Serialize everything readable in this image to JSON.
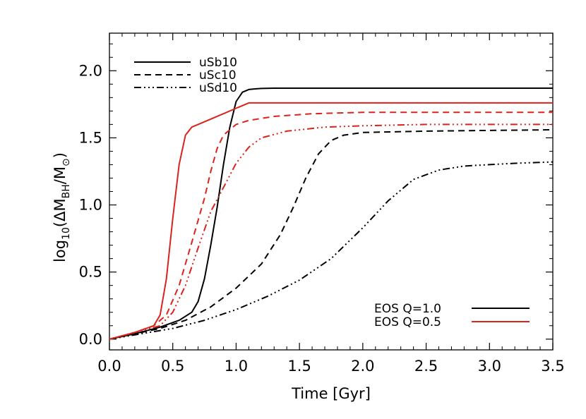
{
  "chart_data": {
    "type": "line",
    "xlabel": "Time [Gyr]",
    "ylabel": "log10(ΔM_BH/M_⊙)",
    "ylabel_parts": {
      "pre": "log",
      "sub1": "10",
      "open": "(ΔM",
      "sub2": "BH",
      "mid": "/M",
      "sub3": "⊙",
      "close": ")"
    },
    "xlim": [
      0.0,
      3.5
    ],
    "ylim": [
      -0.08,
      2.28
    ],
    "xticks": [
      0.0,
      0.5,
      1.0,
      1.5,
      2.0,
      2.5,
      3.0,
      3.5
    ],
    "xtick_labels": [
      "0.0",
      "0.5",
      "1.0",
      "1.5",
      "2.0",
      "2.5",
      "3.0",
      "3.5"
    ],
    "yticks": [
      0.0,
      0.5,
      1.0,
      1.5,
      2.0
    ],
    "ytick_labels": [
      "0.0",
      "0.5",
      "1.0",
      "1.5",
      "2.0"
    ],
    "legend_models": [
      {
        "label": "uSb10",
        "dash": "solid"
      },
      {
        "label": "uSc10",
        "dash": "dashed"
      },
      {
        "label": "uSd10",
        "dash": "dashdotdot"
      }
    ],
    "legend_eos": [
      {
        "label": "EOS Q=1.0",
        "color": "#000000"
      },
      {
        "label": "EOS Q=0.5",
        "color": "#d9231c"
      }
    ],
    "series": [
      {
        "name": "uSb10 Q=1.0",
        "color": "#000000",
        "dash": "solid",
        "x": [
          0.0,
          0.2,
          0.4,
          0.55,
          0.65,
          0.7,
          0.75,
          0.8,
          0.85,
          0.9,
          0.95,
          1.0,
          1.05,
          1.1,
          1.15,
          1.2,
          1.3,
          1.4,
          1.5,
          2.0,
          2.5,
          3.0,
          3.5
        ],
        "y": [
          0.0,
          0.04,
          0.09,
          0.14,
          0.2,
          0.28,
          0.45,
          0.7,
          0.98,
          1.3,
          1.58,
          1.77,
          1.84,
          1.86,
          1.865,
          1.868,
          1.87,
          1.87,
          1.87,
          1.87,
          1.87,
          1.87,
          1.87
        ]
      },
      {
        "name": "uSc10 Q=1.0",
        "color": "#000000",
        "dash": "dashed",
        "x": [
          0.0,
          0.2,
          0.4,
          0.6,
          0.8,
          1.0,
          1.2,
          1.35,
          1.45,
          1.55,
          1.65,
          1.75,
          1.85,
          2.0,
          2.5,
          3.0,
          3.5
        ],
        "y": [
          0.0,
          0.04,
          0.08,
          0.14,
          0.24,
          0.38,
          0.56,
          0.78,
          0.98,
          1.2,
          1.38,
          1.48,
          1.52,
          1.54,
          1.55,
          1.555,
          1.56
        ]
      },
      {
        "name": "uSd10 Q=1.0",
        "color": "#000000",
        "dash": "dashdotdot",
        "x": [
          0.0,
          0.25,
          0.5,
          0.75,
          1.0,
          1.25,
          1.5,
          1.75,
          2.0,
          2.2,
          2.4,
          2.6,
          2.8,
          3.0,
          3.2,
          3.5
        ],
        "y": [
          0.0,
          0.04,
          0.08,
          0.14,
          0.22,
          0.32,
          0.44,
          0.6,
          0.83,
          1.03,
          1.19,
          1.26,
          1.29,
          1.3,
          1.31,
          1.32
        ]
      },
      {
        "name": "uSb10 Q=0.5",
        "color": "#d9231c",
        "dash": "solid",
        "x": [
          0.0,
          0.2,
          0.35,
          0.4,
          0.45,
          0.5,
          0.55,
          0.6,
          0.65,
          0.7,
          0.8,
          0.9,
          1.0,
          1.05,
          1.1,
          1.5,
          2.0,
          2.5,
          3.0,
          3.5
        ],
        "y": [
          0.0,
          0.05,
          0.1,
          0.18,
          0.45,
          0.9,
          1.3,
          1.52,
          1.58,
          1.6,
          1.64,
          1.68,
          1.72,
          1.74,
          1.76,
          1.76,
          1.76,
          1.76,
          1.76,
          1.76
        ]
      },
      {
        "name": "uSc10 Q=0.5",
        "color": "#d9231c",
        "dash": "dashed",
        "x": [
          0.0,
          0.2,
          0.35,
          0.45,
          0.55,
          0.65,
          0.75,
          0.8,
          0.85,
          0.9,
          1.0,
          1.1,
          1.3,
          1.6,
          2.0,
          2.5,
          3.0,
          3.5
        ],
        "y": [
          0.0,
          0.05,
          0.1,
          0.18,
          0.4,
          0.72,
          1.05,
          1.25,
          1.42,
          1.52,
          1.6,
          1.63,
          1.66,
          1.68,
          1.69,
          1.69,
          1.69,
          1.69
        ]
      },
      {
        "name": "uSd10 Q=0.5",
        "color": "#d9231c",
        "dash": "dashdotdot",
        "x": [
          0.0,
          0.2,
          0.4,
          0.5,
          0.6,
          0.7,
          0.8,
          0.9,
          1.0,
          1.1,
          1.2,
          1.4,
          1.7,
          2.0,
          2.5,
          3.0,
          3.5
        ],
        "y": [
          0.0,
          0.05,
          0.1,
          0.2,
          0.4,
          0.68,
          0.95,
          1.13,
          1.31,
          1.43,
          1.5,
          1.55,
          1.58,
          1.59,
          1.6,
          1.6,
          1.6
        ]
      }
    ]
  }
}
